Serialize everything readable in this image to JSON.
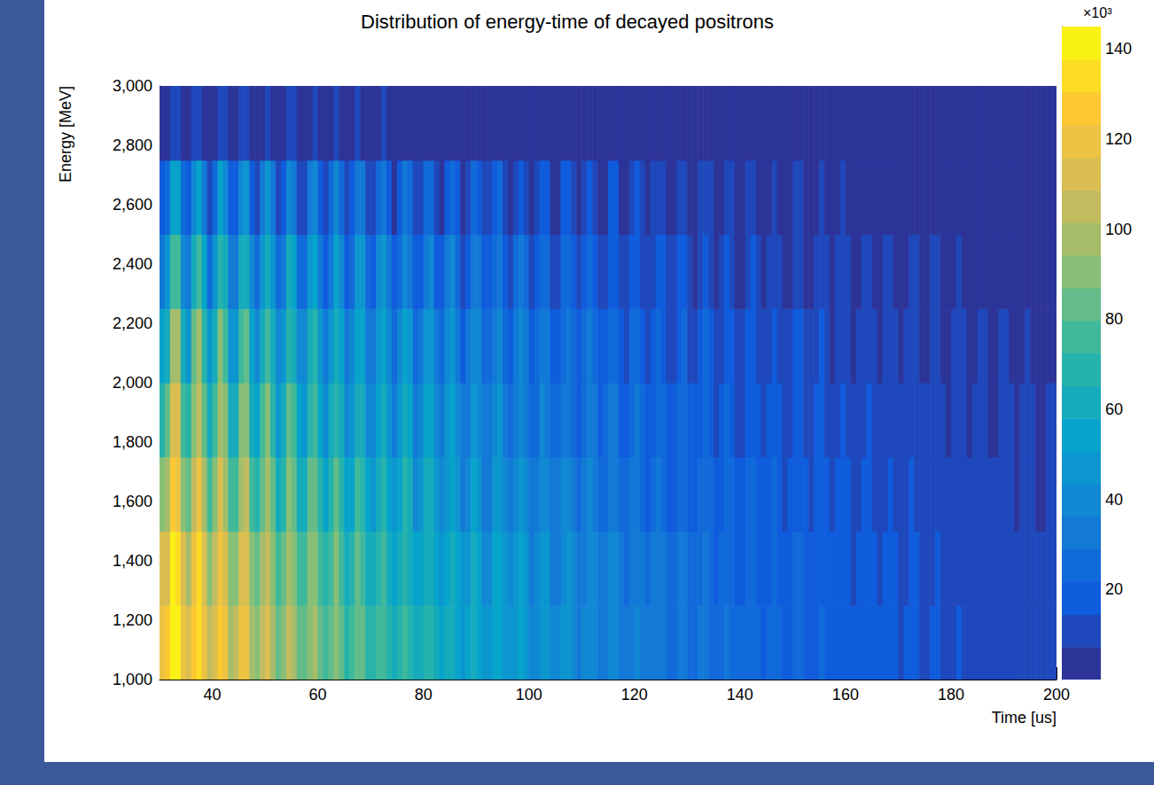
{
  "chart_data": {
    "type": "heatmap",
    "title": "Distribution of energy-time of decayed positrons",
    "x_label": "Time [us]",
    "y_label": "Energy [MeV]",
    "xlim": [
      30,
      200
    ],
    "xticks": [
      40,
      60,
      80,
      100,
      120,
      140,
      160,
      180,
      200
    ],
    "ylim": [
      1000,
      3000
    ],
    "yticks": [
      1000,
      1200,
      1400,
      1600,
      1800,
      2000,
      2200,
      2400,
      2600,
      2800,
      3000
    ],
    "zlim": [
      0,
      145
    ],
    "zticks": [
      20,
      40,
      60,
      80,
      100,
      120,
      140
    ],
    "z_label": "×10³",
    "x_bins": [
      30,
      31,
      32,
      33,
      34,
      35,
      36,
      37,
      38,
      39,
      40,
      41,
      42,
      43,
      44,
      45,
      46,
      47,
      48,
      49,
      50,
      51,
      52,
      53,
      54,
      55,
      56,
      57,
      58,
      59,
      60,
      61,
      62,
      63,
      64,
      65,
      66,
      67,
      68,
      69,
      70,
      71,
      72,
      73,
      74,
      75,
      76,
      77,
      78,
      79,
      80,
      81,
      82,
      83,
      84,
      85,
      86,
      87,
      88,
      89,
      90,
      91,
      92,
      93,
      94,
      95,
      96,
      97,
      98,
      99,
      100,
      101,
      102,
      103,
      104,
      105,
      106,
      107,
      108,
      109,
      110,
      111,
      112,
      113,
      114,
      115,
      116,
      117,
      118,
      119,
      120,
      121,
      122,
      123,
      124,
      125,
      126,
      127,
      128,
      129,
      130,
      131,
      132,
      133,
      134,
      135,
      136,
      137,
      138,
      139,
      140,
      141,
      142,
      143,
      144,
      145,
      146,
      147,
      148,
      149,
      150,
      151,
      152,
      153,
      154,
      155,
      156,
      157,
      158,
      159,
      160,
      161,
      162,
      163,
      164,
      165,
      166,
      167,
      168,
      169,
      170,
      171,
      172,
      173,
      174,
      175,
      176,
      177,
      178,
      179,
      180,
      181,
      182,
      183,
      184,
      185,
      186,
      187,
      188,
      189,
      190,
      191,
      192,
      193,
      194,
      195,
      196,
      197,
      198,
      199,
      200
    ],
    "y_bins": [
      1000,
      1250,
      1500,
      1750,
      2000,
      2250,
      2500,
      2750,
      3000
    ],
    "z": [
      [
        123,
        126,
        144,
        142,
        120,
        114,
        129,
        137,
        120,
        105,
        115,
        128,
        120,
        101,
        102,
        117,
        117,
        100,
        92,
        104,
        112,
        100,
        86,
        92,
        104,
        99,
        84,
        82,
        94,
        97,
        83,
        75,
        83,
        91,
        83,
        71,
        74,
        84,
        82,
        69,
        66,
        76,
        79,
        69,
        61,
        67,
        75,
        69,
        59,
        59,
        68,
        68,
        58,
        54,
        61,
        65,
        57,
        50,
        54,
        61,
        57,
        48,
        48,
        55,
        56,
        48,
        44,
        49,
        53,
        48,
        41,
        43,
        49,
        47,
        40,
        39,
        44,
        46,
        40,
        36,
        39,
        43,
        40,
        34,
        35,
        40,
        39,
        33,
        31,
        36,
        38,
        33,
        29,
        31,
        35,
        33,
        28,
        28,
        32,
        32,
        28,
        25,
        29,
        31,
        28,
        24,
        25,
        29,
        27,
        23,
        23,
        26,
        27,
        23,
        21,
        23,
        25,
        23,
        20,
        20,
        23,
        23,
        19,
        18,
        21,
        22,
        19,
        17,
        18,
        21,
        19,
        16,
        16,
        19,
        19,
        16,
        15,
        17,
        18,
        16,
        14,
        15,
        17,
        16,
        13,
        13,
        15,
        15,
        13,
        12,
        13,
        15,
        13,
        11,
        12,
        13,
        13,
        11,
        11,
        12,
        13,
        11,
        10,
        11,
        12,
        11,
        9,
        10,
        11,
        11
      ],
      [
        109,
        114,
        138,
        135,
        109,
        101,
        121,
        131,
        111,
        93,
        105,
        123,
        113,
        90,
        91,
        111,
        112,
        91,
        82,
        97,
        108,
        93,
        77,
        84,
        99,
        94,
        75,
        73,
        89,
        93,
        76,
        66,
        77,
        88,
        78,
        63,
        67,
        80,
        78,
        63,
        59,
        71,
        76,
        64,
        54,
        62,
        72,
        65,
        52,
        54,
        65,
        65,
        52,
        48,
        57,
        62,
        53,
        44,
        49,
        58,
        54,
        43,
        43,
        52,
        53,
        44,
        39,
        46,
        51,
        45,
        36,
        39,
        47,
        45,
        36,
        35,
        42,
        44,
        37,
        31,
        36,
        42,
        37,
        30,
        31,
        38,
        37,
        30,
        28,
        33,
        36,
        31,
        26,
        29,
        34,
        31,
        25,
        25,
        30,
        31,
        25,
        23,
        27,
        30,
        26,
        21,
        23,
        27,
        26,
        21,
        20,
        24,
        25,
        21,
        18,
        21,
        24,
        21,
        17,
        18,
        22,
        22,
        17,
        16,
        20,
        21,
        18,
        15,
        17,
        20,
        18,
        14,
        15,
        18,
        18,
        15,
        13,
        16,
        17,
        15,
        12,
        14,
        16,
        15,
        12,
        12,
        14,
        15,
        12,
        11,
        12,
        14,
        12,
        10,
        11,
        13,
        12,
        10,
        9,
        11,
        12,
        10,
        9,
        10,
        12,
        10,
        8,
        9,
        10,
        10
      ],
      [
        90,
        96,
        125,
        123,
        92,
        83,
        108,
        121,
        97,
        76,
        91,
        113,
        101,
        75,
        76,
        100,
        102,
        78,
        67,
        86,
        99,
        82,
        62,
        72,
        91,
        85,
        63,
        61,
        80,
        85,
        66,
        54,
        68,
        81,
        69,
        52,
        57,
        73,
        71,
        53,
        49,
        64,
        70,
        55,
        44,
        54,
        66,
        58,
        43,
        45,
        59,
        59,
        44,
        39,
        50,
        57,
        47,
        36,
        42,
        53,
        49,
        36,
        36,
        47,
        49,
        38,
        32,
        40,
        47,
        40,
        30,
        34,
        43,
        41,
        30,
        29,
        37,
        40,
        32,
        26,
        32,
        38,
        33,
        25,
        27,
        34,
        34,
        25,
        23,
        30,
        33,
        27,
        21,
        25,
        31,
        28,
        21,
        21,
        28,
        28,
        21,
        18,
        24,
        27,
        23,
        17,
        20,
        25,
        23,
        17,
        17,
        22,
        23,
        18,
        15,
        19,
        22,
        19,
        14,
        16,
        20,
        20,
        15,
        13,
        18,
        19,
        15,
        12,
        15,
        18,
        16,
        12,
        12,
        16,
        16,
        12,
        11,
        14,
        16,
        13,
        10,
        12,
        15,
        13,
        10,
        10,
        13,
        13,
        10,
        9,
        11,
        13,
        11,
        8,
        9,
        12,
        11,
        8,
        8,
        10,
        11,
        9,
        7,
        9,
        11,
        9,
        7,
        7,
        9,
        9
      ],
      [
        72,
        80,
        111,
        109,
        76,
        67,
        94,
        108,
        83,
        60,
        77,
        101,
        89,
        61,
        63,
        89,
        91,
        65,
        53,
        74,
        89,
        71,
        50,
        60,
        81,
        75,
        51,
        49,
        70,
        76,
        55,
        43,
        58,
        72,
        60,
        41,
        47,
        65,
        63,
        43,
        39,
        56,
        63,
        47,
        35,
        46,
        59,
        51,
        35,
        37,
        52,
        53,
        37,
        31,
        44,
        51,
        40,
        29,
        36,
        48,
        43,
        29,
        29,
        41,
        44,
        32,
        25,
        34,
        42,
        34,
        24,
        28,
        38,
        36,
        25,
        23,
        33,
        36,
        27,
        20,
        27,
        34,
        29,
        20,
        22,
        31,
        30,
        21,
        18,
        26,
        30,
        23,
        17,
        21,
        28,
        25,
        17,
        17,
        24,
        25,
        18,
        15,
        20,
        24,
        20,
        14,
        17,
        22,
        21,
        14,
        14,
        19,
        21,
        15,
        12,
        16,
        20,
        17,
        11,
        13,
        18,
        17,
        12,
        11,
        15,
        17,
        13,
        10,
        13,
        16,
        14,
        10,
        10,
        14,
        15,
        10,
        9,
        12,
        14,
        11,
        8,
        10,
        13,
        12,
        8,
        8,
        11,
        12,
        9,
        7,
        9,
        12,
        9,
        7,
        8,
        10,
        10,
        7,
        6,
        9,
        10,
        8,
        6,
        8,
        9,
        8,
        6,
        6,
        8,
        8
      ],
      [
        54,
        63,
        97,
        96,
        60,
        50,
        80,
        96,
        69,
        45,
        63,
        89,
        77,
        46,
        49,
        77,
        80,
        52,
        40,
        63,
        79,
        59,
        37,
        49,
        71,
        65,
        40,
        38,
        61,
        67,
        45,
        32,
        48,
        64,
        51,
        31,
        38,
        57,
        55,
        34,
        30,
        48,
        55,
        39,
        26,
        38,
        52,
        44,
        26,
        29,
        45,
        46,
        29,
        23,
        37,
        46,
        33,
        21,
        29,
        42,
        37,
        22,
        23,
        36,
        38,
        25,
        19,
        29,
        37,
        29,
        18,
        22,
        34,
        31,
        19,
        18,
        28,
        32,
        22,
        15,
        22,
        30,
        25,
        15,
        17,
        27,
        27,
        17,
        14,
        22,
        26,
        19,
        12,
        17,
        25,
        21,
        13,
        13,
        21,
        22,
        14,
        11,
        17,
        22,
        16,
        10,
        13,
        20,
        18,
        11,
        10,
        17,
        18,
        12,
        9,
        13,
        18,
        14,
        9,
        10,
        16,
        15,
        9,
        8,
        13,
        15,
        11,
        7,
        10,
        14,
        12,
        7,
        8,
        13,
        13,
        8,
        6,
        10,
        13,
        9,
        6,
        8,
        12,
        10,
        6,
        6,
        10,
        11,
        7,
        5,
        8,
        10,
        8,
        5,
        6,
        9,
        9,
        5,
        5,
        8,
        9,
        6,
        4,
        6,
        8,
        7,
        4,
        5,
        7,
        7
      ],
      [
        35,
        44,
        78,
        77,
        42,
        32,
        62,
        78,
        51,
        28,
        46,
        72,
        60,
        30,
        33,
        61,
        65,
        37,
        25,
        48,
        64,
        45,
        23,
        35,
        58,
        52,
        26,
        25,
        48,
        54,
        33,
        20,
        36,
        52,
        39,
        20,
        26,
        46,
        44,
        23,
        19,
        37,
        45,
        29,
        16,
        28,
        42,
        34,
        17,
        20,
        36,
        37,
        21,
        15,
        29,
        37,
        25,
        13,
        21,
        34,
        29,
        15,
        15,
        28,
        31,
        18,
        12,
        22,
        30,
        22,
        11,
        16,
        27,
        25,
        13,
        11,
        22,
        26,
        16,
        9,
        17,
        25,
        19,
        10,
        12,
        21,
        21,
        12,
        9,
        17,
        21,
        14,
        8,
        13,
        20,
        17,
        8,
        9,
        17,
        18,
        10,
        7,
        13,
        18,
        12,
        6,
        9,
        16,
        14,
        7,
        7,
        13,
        15,
        9,
        5,
        10,
        14,
        11,
        5,
        7,
        13,
        12,
        6,
        5,
        10,
        12,
        8,
        4,
        8,
        12,
        9,
        5,
        5,
        10,
        10,
        6,
        4,
        8,
        10,
        7,
        4,
        6,
        9,
        8,
        4,
        4,
        8,
        9,
        5,
        3,
        6,
        8,
        6,
        3,
        4,
        7,
        7,
        4,
        3,
        6,
        7,
        5,
        3,
        5,
        7,
        5,
        3,
        3,
        6,
        6
      ],
      [
        16,
        24,
        54,
        53,
        23,
        15,
        41,
        55,
        32,
        12,
        28,
        51,
        40,
        15,
        17,
        42,
        45,
        21,
        11,
        31,
        45,
        29,
        10,
        20,
        40,
        35,
        14,
        13,
        32,
        38,
        20,
        9,
        23,
        37,
        26,
        9,
        15,
        32,
        30,
        13,
        9,
        25,
        32,
        18,
        7,
        17,
        30,
        23,
        8,
        11,
        25,
        26,
        12,
        7,
        19,
        26,
        16,
        6,
        13,
        24,
        20,
        8,
        8,
        19,
        22,
        11,
        5,
        14,
        21,
        14,
        5,
        9,
        19,
        17,
        7,
        6,
        15,
        18,
        10,
        4,
        10,
        17,
        13,
        5,
        7,
        15,
        15,
        6,
        4,
        11,
        15,
        9,
        3,
        8,
        14,
        11,
        4,
        5,
        12,
        12,
        6,
        3,
        8,
        12,
        8,
        3,
        6,
        11,
        10,
        4,
        3,
        9,
        10,
        5,
        2,
        6,
        10,
        7,
        3,
        4,
        9,
        8,
        4,
        2,
        7,
        9,
        5,
        2,
        5,
        8,
        6,
        2,
        3,
        7,
        7,
        3,
        2,
        5,
        7,
        4,
        2,
        3,
        7,
        6,
        2,
        2,
        5,
        6,
        3,
        1,
        4,
        6,
        4,
        1,
        2,
        5,
        5,
        2,
        2,
        4,
        5,
        3,
        1,
        3,
        5,
        4,
        1,
        2,
        4,
        4
      ],
      [
        2,
        4,
        13,
        13,
        4,
        2,
        9,
        13,
        7,
        1,
        6,
        12,
        9,
        2,
        3,
        10,
        11,
        4,
        1,
        7,
        11,
        6,
        1,
        4,
        10,
        8,
        2,
        2,
        7,
        9,
        4,
        1,
        5,
        9,
        6,
        1,
        3,
        8,
        7,
        2,
        1,
        6,
        8,
        4,
        1,
        3,
        7,
        5,
        1,
        2,
        6,
        6,
        2,
        1,
        4,
        6,
        3,
        0,
        2,
        6,
        5,
        1,
        1,
        4,
        5,
        2,
        0,
        3,
        5,
        3,
        0,
        2,
        5,
        4,
        1,
        1,
        3,
        4,
        2,
        0,
        2,
        4,
        3,
        0,
        1,
        4,
        4,
        1,
        0,
        3,
        4,
        2,
        0,
        2,
        3,
        3,
        1,
        1,
        3,
        3,
        1,
        0,
        2,
        3,
        2,
        0,
        1,
        3,
        2,
        1,
        0,
        2,
        3,
        1,
        0,
        1,
        2,
        2,
        0,
        1,
        2,
        2,
        1,
        0,
        2,
        2,
        1,
        0,
        1,
        2,
        1,
        0,
        0,
        2,
        2,
        1,
        0,
        1,
        2,
        1,
        0,
        1,
        2,
        1,
        0,
        0,
        1,
        1,
        1,
        0,
        1,
        1,
        1,
        0,
        0,
        1,
        1,
        0,
        0,
        1,
        1,
        1,
        0,
        1,
        1,
        1,
        0,
        0,
        1,
        1
      ]
    ]
  }
}
